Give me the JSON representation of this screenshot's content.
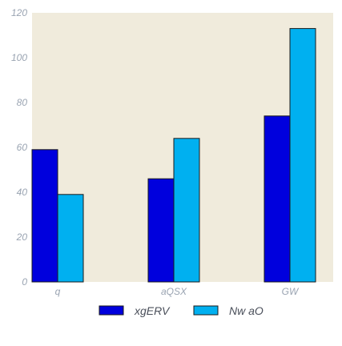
{
  "chart_data": {
    "type": "bar",
    "categories": [
      "q",
      "aQSX",
      "GW"
    ],
    "series": [
      {
        "name": "xgERV",
        "color": "#0000dd",
        "values": [
          59,
          46,
          74
        ]
      },
      {
        "name": "Nw aO",
        "color": "#00b0f0",
        "values": [
          39,
          64,
          113
        ]
      }
    ],
    "ylim": [
      0,
      120
    ],
    "yticks": [
      0,
      20,
      40,
      60,
      80,
      100,
      120
    ],
    "grid": false,
    "legend_position": "bottom-center",
    "plot_background": "#f0ebdc"
  }
}
